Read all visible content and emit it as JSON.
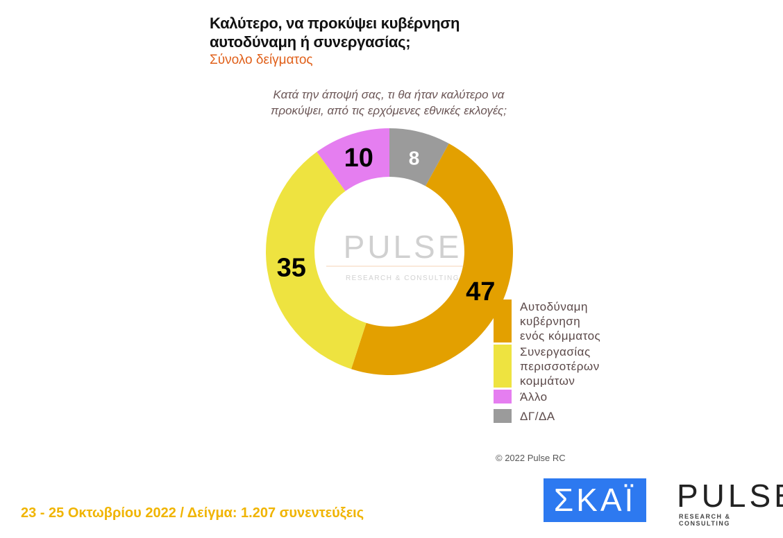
{
  "title_line1": "Καλύτερο, να προκύψει κυβέρνηση",
  "title_line2": "αυτοδύναμη ή συνεργασίας;",
  "subtitle": "Σύνολο δείγματος",
  "question_line1": "Κατά την άποψή σας, τι θα ήταν καλύτερο να",
  "question_line2": "προκύψει, από τις ερχόμενες εθνικές εκλογές;",
  "chart_data": {
    "type": "pie",
    "donut": true,
    "start": "top",
    "direction": "clockwise",
    "legend_position": "right",
    "slices": [
      {
        "label": "ΔΓ/ΔΑ",
        "value": 8,
        "color": "#9b9b9b",
        "label_color": "#ffffff"
      },
      {
        "label": "Αυτοδύναμη κυβέρνηση ενός κόμματος",
        "value": 47,
        "color": "#e3a000",
        "label_color": "#000000"
      },
      {
        "label": "Συνεργασίας περισσοτέρων κομμάτων",
        "value": 35,
        "color": "#eee340",
        "label_color": "#000000"
      },
      {
        "label": "Άλλο",
        "value": 10,
        "color": "#e57ef0",
        "label_color": "#000000"
      }
    ]
  },
  "legend": [
    {
      "lines": [
        "Αυτοδύναμη",
        "κυβέρνηση",
        "ενός κόμματος"
      ],
      "color": "#e3a000"
    },
    {
      "lines": [
        "Συνεργασίας",
        "περισσοτέρων",
        "κομμάτων"
      ],
      "color": "#eee340"
    },
    {
      "lines": [
        "Άλλο"
      ],
      "color": "#e57ef0"
    },
    {
      "lines": [
        "ΔΓ/ΔΑ"
      ],
      "color": "#9b9b9b"
    }
  ],
  "watermark": "PULSE",
  "watermark_sub": "RESEARCH & CONSULTING",
  "copyright": "© 2022 Pulse RC",
  "footer": "23 - 25  Οκτωβρίου  2022  /  Δείγμα:  1.207 συνεντεύξεις",
  "logos": {
    "skai": "ΣΚΑΪ",
    "pulse": "PULSE",
    "pulse_sub": "RESEARCH & CONSULTING"
  }
}
